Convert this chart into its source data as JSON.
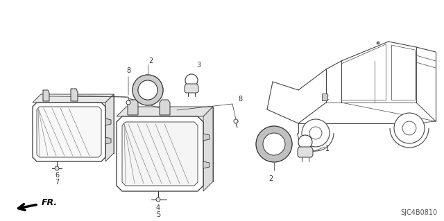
{
  "background_color": "#ffffff",
  "diagram_code": "SJC4B0810",
  "line_color": "#333333",
  "truck_color": "#444444"
}
